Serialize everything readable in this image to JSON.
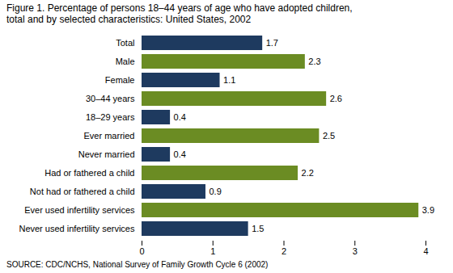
{
  "chart_data": {
    "type": "bar",
    "orientation": "horizontal",
    "title": "Figure 1. Percentage of persons 18–44 years of age who have adopted children,",
    "subtitle": "total and by selected characteristics: United States, 2002",
    "source": "SOURCE: CDC/NCHS, National Survey of Family Growth Cycle 6 (2002)",
    "categories": [
      "Never used infertility services",
      "Ever used infertility services",
      "Not had or fathered a child",
      "Had or fathered a child",
      "Never married",
      "Ever married",
      "18–29 years",
      "30–44 years",
      "Female",
      "Male",
      "Total"
    ],
    "values": [
      1.5,
      3.9,
      0.9,
      2.2,
      0.4,
      2.5,
      0.4,
      2.6,
      1.1,
      2.3,
      1.7
    ],
    "colors": [
      "#1e3a5f",
      "#6b8c23",
      "#1e3a5f",
      "#6b8c23",
      "#1e3a5f",
      "#6b8c23",
      "#1e3a5f",
      "#6b8c23",
      "#1e3a5f",
      "#6b8c23",
      "#1e3a5f"
    ],
    "xlim": [
      0,
      4
    ],
    "xticks": [
      0,
      1,
      2,
      3,
      4
    ],
    "data_labels": true,
    "grid": false
  }
}
